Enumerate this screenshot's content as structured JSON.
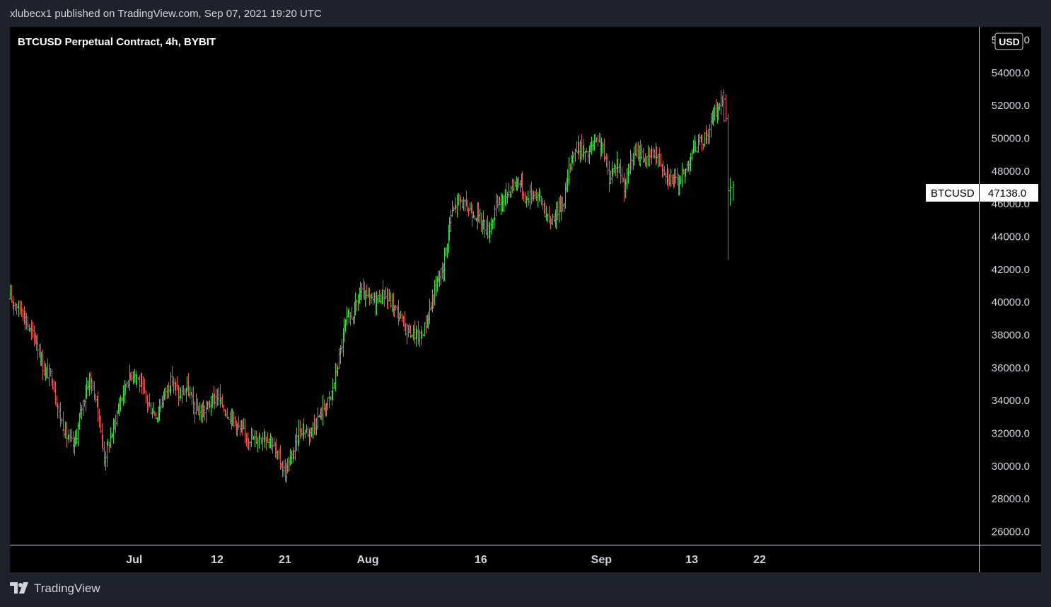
{
  "header": {
    "published_by": "xlubecx1 published on TradingView.com, Sep 07, 2021 19:20 UTC"
  },
  "chart_title": "BTCUSD Perpetual Contract, 4h, BYBIT",
  "currency_badge": "USD",
  "last_price": {
    "symbol": "BTCUSD",
    "value": "47138.0"
  },
  "footer": {
    "brand": "TradingView"
  },
  "colors": {
    "up": "#26e32a",
    "down": "#e8504a",
    "background": "#000000",
    "frame": "#1e222d",
    "axis_text": "#d1d4dc"
  },
  "chart_data": {
    "type": "line",
    "title": "BTCUSD Perpetual Contract, 4h, BYBIT",
    "style": "ohlc-bars",
    "y_tick_labels": [
      "56000.0",
      "54000.0",
      "52000.0",
      "50000.0",
      "48000.0",
      "46000.0",
      "44000.0",
      "42000.0",
      "40000.0",
      "38000.0",
      "36000.0",
      "34000.0",
      "32000.0",
      "30000.0",
      "28000.0",
      "26000.0"
    ],
    "ylim": [
      25200,
      56800
    ],
    "x_tick_labels": [
      {
        "label": "Jul",
        "day": 6
      },
      {
        "label": "12",
        "day": 17
      },
      {
        "label": "21",
        "day": 26
      },
      {
        "label": "Aug",
        "day": 37
      },
      {
        "label": "16",
        "day": 52
      },
      {
        "label": "Sep",
        "day": 68
      },
      {
        "label": "13",
        "day": 80
      },
      {
        "label": "22",
        "day": 89
      }
    ],
    "xlim": [
      -10.5,
      118
    ],
    "series": [
      {
        "x_unit": "days from 2021-06-20",
        "points": [
          [
            -10.5,
            40200
          ],
          [
            -9,
            39600
          ],
          [
            -8,
            38400
          ],
          [
            -7,
            37600
          ],
          [
            -6,
            35800
          ],
          [
            -5,
            35500
          ],
          [
            -4,
            33200
          ],
          [
            -3,
            31800
          ],
          [
            -2,
            31200
          ],
          [
            -1,
            33600
          ],
          [
            0,
            35400
          ],
          [
            1,
            33900
          ],
          [
            2,
            30500
          ],
          [
            3,
            32000
          ],
          [
            4,
            33800
          ],
          [
            5,
            35200
          ],
          [
            6,
            35800
          ],
          [
            7,
            34700
          ],
          [
            8,
            33600
          ],
          [
            9,
            33100
          ],
          [
            10,
            34500
          ],
          [
            11,
            35300
          ],
          [
            12,
            34200
          ],
          [
            13,
            34800
          ],
          [
            14,
            33500
          ],
          [
            15,
            33200
          ],
          [
            16,
            33800
          ],
          [
            17,
            34300
          ],
          [
            18,
            33400
          ],
          [
            19,
            33000
          ],
          [
            20,
            32200
          ],
          [
            21,
            31800
          ],
          [
            22,
            31600
          ],
          [
            23,
            31900
          ],
          [
            24,
            31700
          ],
          [
            25,
            30600
          ],
          [
            26,
            29600
          ],
          [
            27,
            30700
          ],
          [
            28,
            32300
          ],
          [
            29,
            32100
          ],
          [
            30,
            32600
          ],
          [
            31,
            33500
          ],
          [
            32,
            34100
          ],
          [
            33,
            36200
          ],
          [
            34,
            38700
          ],
          [
            35,
            39300
          ],
          [
            36,
            40600
          ],
          [
            37,
            40200
          ],
          [
            38,
            40100
          ],
          [
            39,
            40500
          ],
          [
            40,
            40000
          ],
          [
            41,
            39300
          ],
          [
            42,
            38400
          ],
          [
            43,
            38100
          ],
          [
            44,
            37800
          ],
          [
            45,
            39200
          ],
          [
            46,
            41000
          ],
          [
            47,
            42200
          ],
          [
            48,
            45300
          ],
          [
            49,
            46300
          ],
          [
            50,
            45800
          ],
          [
            51,
            45500
          ],
          [
            52,
            45000
          ],
          [
            53,
            44300
          ],
          [
            54,
            45800
          ],
          [
            55,
            46300
          ],
          [
            56,
            47000
          ],
          [
            57,
            47500
          ],
          [
            58,
            46200
          ],
          [
            59,
            46800
          ],
          [
            60,
            46200
          ],
          [
            61,
            44800
          ],
          [
            62,
            45500
          ],
          [
            63,
            46300
          ],
          [
            64,
            48900
          ],
          [
            65,
            49500
          ],
          [
            66,
            48900
          ],
          [
            67,
            49700
          ],
          [
            68,
            49600
          ],
          [
            69,
            47600
          ],
          [
            70,
            48600
          ],
          [
            71,
            47100
          ],
          [
            72,
            48700
          ],
          [
            73,
            49200
          ],
          [
            74,
            48600
          ],
          [
            75,
            49200
          ],
          [
            76,
            48400
          ],
          [
            77,
            47600
          ],
          [
            78,
            47300
          ],
          [
            79,
            47900
          ],
          [
            80,
            49200
          ],
          [
            81,
            49700
          ],
          [
            82,
            50200
          ],
          [
            83,
            51500
          ],
          [
            84,
            52300
          ],
          [
            84.8,
            48000
          ],
          [
            85.5,
            47138
          ]
        ]
      }
    ]
  }
}
